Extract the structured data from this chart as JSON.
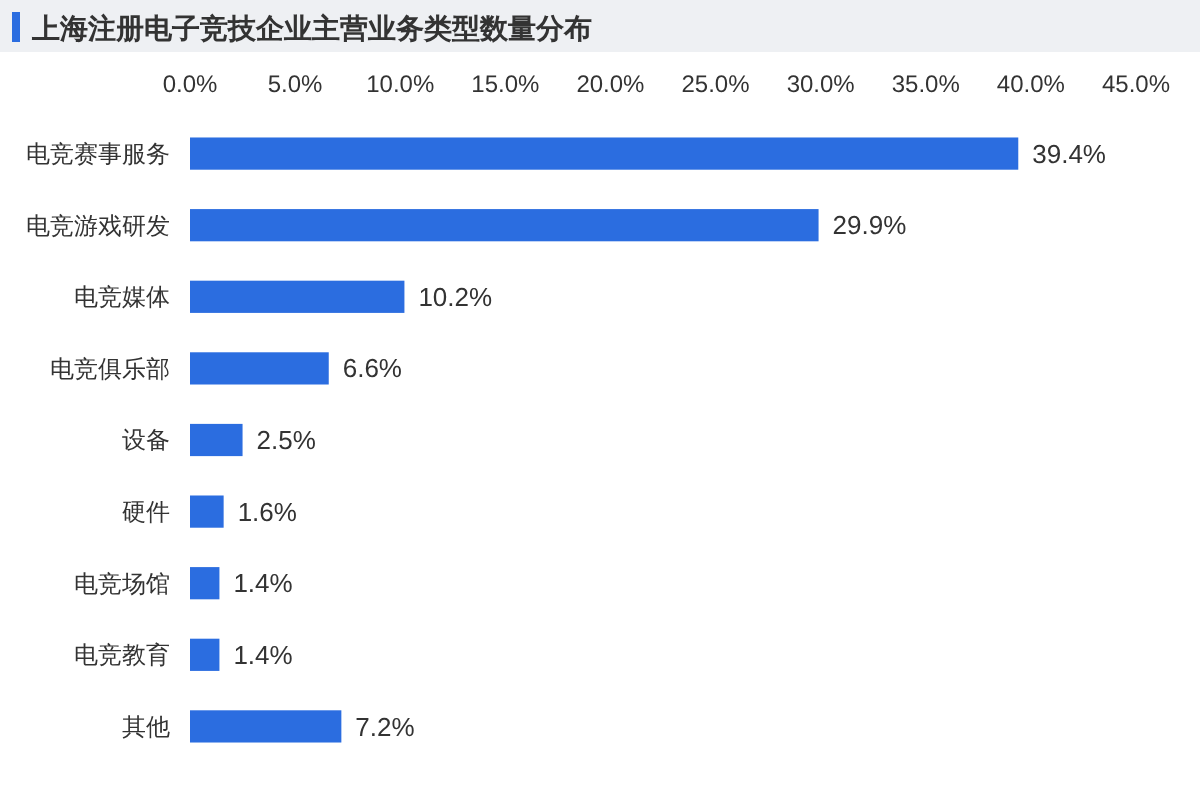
{
  "chart_data": {
    "type": "bar",
    "orientation": "horizontal",
    "title": "上海注册电子竞技企业主营业务类型数量分布",
    "categories": [
      "电竞赛事服务",
      "电竞游戏研发",
      "电竞媒体",
      "电竞俱乐部",
      "设备",
      "硬件",
      "电竞场馆",
      "电竞教育",
      "其他"
    ],
    "values": [
      39.4,
      29.9,
      10.2,
      6.6,
      2.5,
      1.6,
      1.4,
      1.4,
      7.2
    ],
    "value_labels": [
      "39.4%",
      "29.9%",
      "10.2%",
      "6.6%",
      "2.5%",
      "1.6%",
      "1.4%",
      "1.4%",
      "7.2%"
    ],
    "color": "#2b6de0",
    "xlim": [
      0,
      45
    ],
    "xticks": [
      {
        "value": 0,
        "label": "0.0%"
      },
      {
        "value": 5,
        "label": "5.0%"
      },
      {
        "value": 10,
        "label": "10.0%"
      },
      {
        "value": 15,
        "label": "15.0%"
      },
      {
        "value": 20,
        "label": "20.0%"
      },
      {
        "value": 25,
        "label": "25.0%"
      },
      {
        "value": 30,
        "label": "30.0%"
      },
      {
        "value": 35,
        "label": "35.0%"
      },
      {
        "value": 40,
        "label": "40.0%"
      },
      {
        "value": 45,
        "label": "45.0%"
      }
    ],
    "grid": false
  }
}
